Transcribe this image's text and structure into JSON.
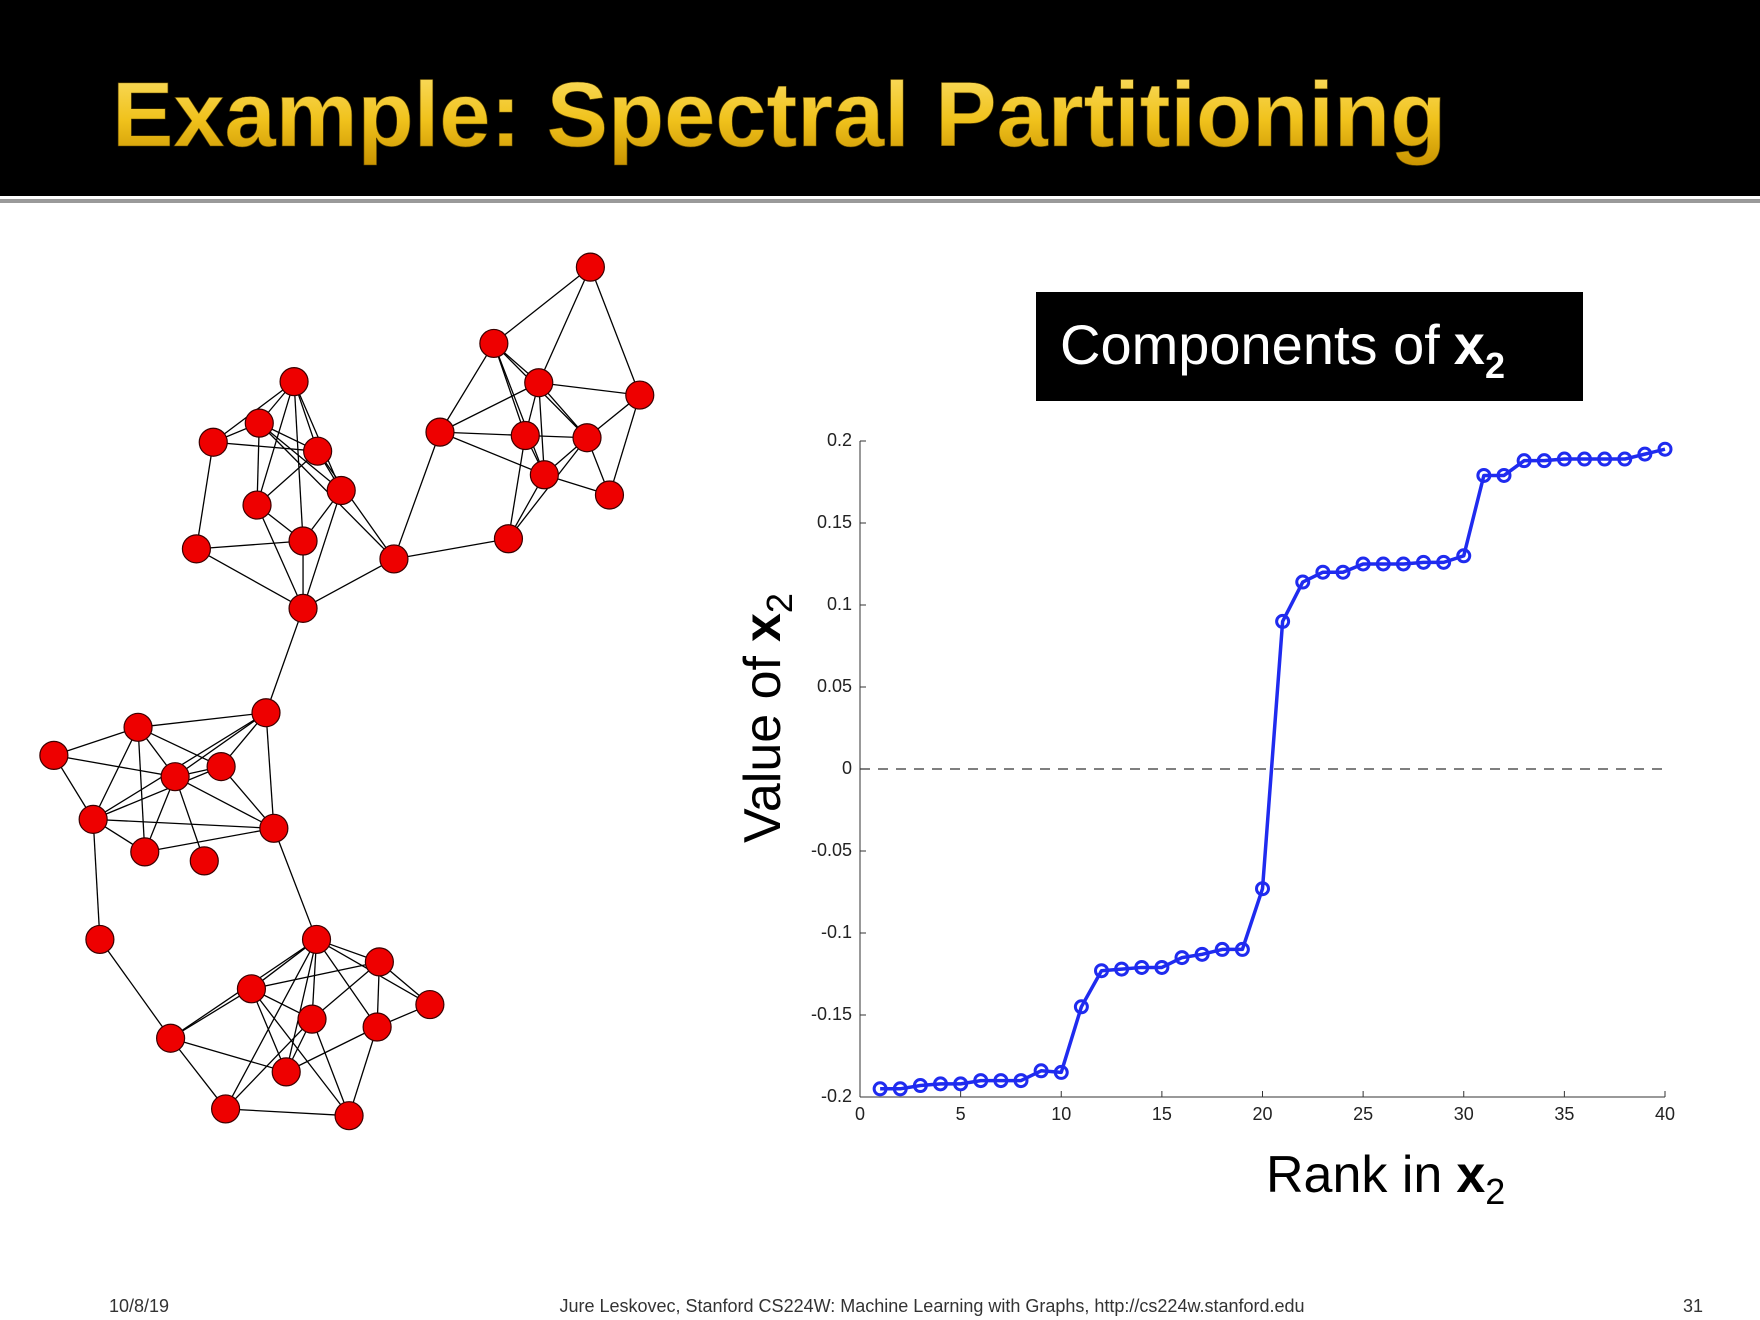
{
  "header": {
    "title": "Example: Spectral Partitioning"
  },
  "chart_data": {
    "type": "line",
    "title": {
      "text": "Components of",
      "symbol": "x",
      "subscript": "2"
    },
    "ylabel": {
      "text": "Value of",
      "symbol": "x",
      "subscript": "2"
    },
    "xlabel": {
      "text": "Rank in",
      "symbol": "x",
      "subscript": "2"
    },
    "x": [
      1,
      2,
      3,
      4,
      5,
      6,
      7,
      8,
      9,
      10,
      11,
      12,
      13,
      14,
      15,
      16,
      17,
      18,
      19,
      20,
      21,
      22,
      23,
      24,
      25,
      26,
      27,
      28,
      29,
      30,
      31,
      32,
      33,
      34,
      35,
      36,
      37,
      38,
      39,
      40
    ],
    "values": [
      -0.195,
      -0.195,
      -0.193,
      -0.192,
      -0.192,
      -0.19,
      -0.19,
      -0.19,
      -0.184,
      -0.185,
      -0.145,
      -0.123,
      -0.122,
      -0.121,
      -0.121,
      -0.115,
      -0.113,
      -0.11,
      -0.11,
      -0.073,
      0.09,
      0.114,
      0.12,
      0.12,
      0.125,
      0.125,
      0.125,
      0.126,
      0.126,
      0.13,
      0.179,
      0.179,
      0.188,
      0.188,
      0.189,
      0.189,
      0.189,
      0.189,
      0.192,
      0.195
    ],
    "color": "#1f2bef",
    "reference_line": 0,
    "xlim": [
      0,
      40
    ],
    "xticks": [
      0,
      5,
      10,
      15,
      20,
      25,
      30,
      35,
      40
    ],
    "ylim": [
      -0.2,
      0.2
    ],
    "yticks": [
      -0.2,
      -0.15,
      -0.1,
      -0.05,
      0,
      0.05,
      0.1,
      0.15,
      0.2
    ]
  },
  "footer": {
    "date": "10/8/19",
    "credit": "Jure Leskovec, Stanford CS224W: Machine Learning with Graphs, http://cs224w.stanford.edu",
    "page": "31"
  }
}
